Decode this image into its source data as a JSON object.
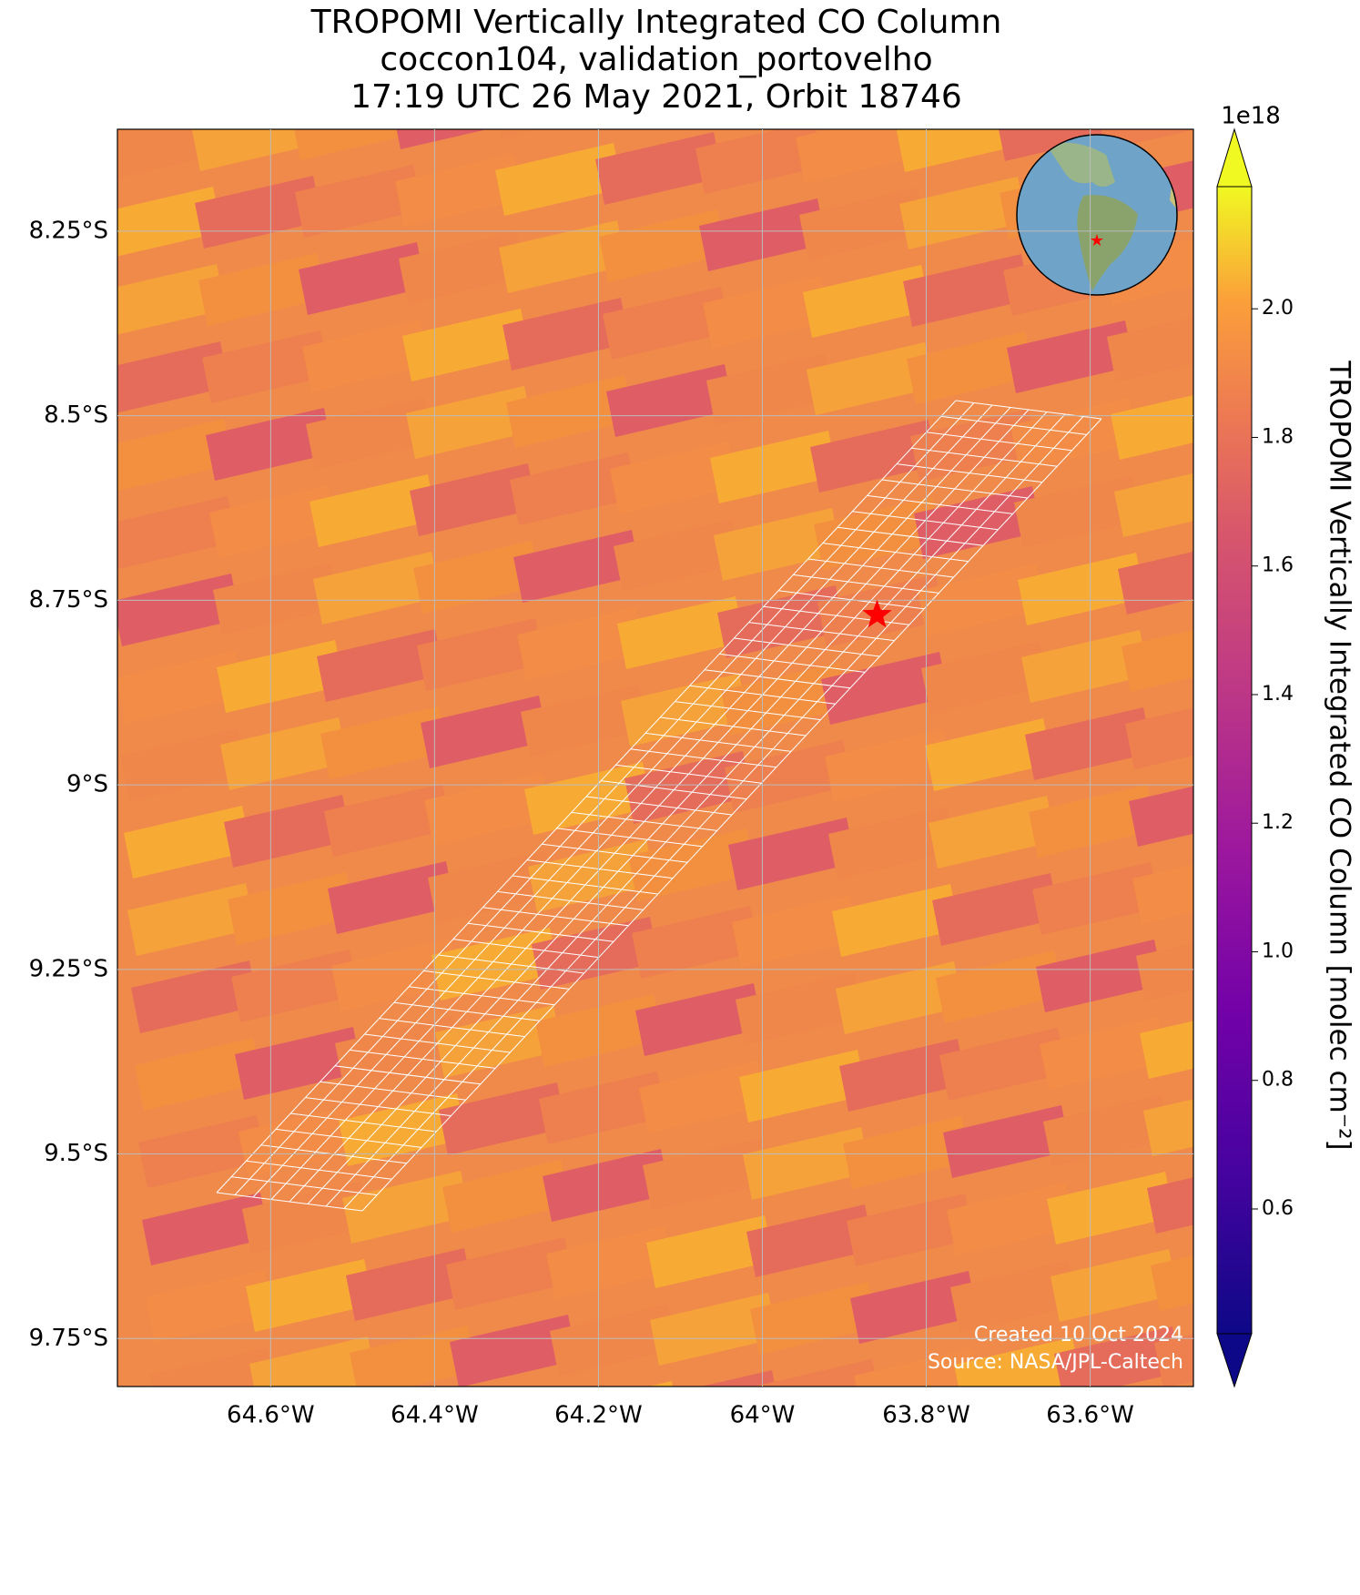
{
  "chart_data": {
    "type": "map",
    "title": [
      "TROPOMI Vertically Integrated CO Column",
      "coccon104, validation_portovelho",
      "17:19 UTC 26 May 2021, Orbit 18746"
    ],
    "xlim": [
      -64.787,
      -63.474
    ],
    "ylim": [
      -9.815,
      -8.112
    ],
    "xticks": [
      {
        "value": -64.6,
        "label": "64.6°W"
      },
      {
        "value": -64.4,
        "label": "64.4°W"
      },
      {
        "value": -64.2,
        "label": "64.2°W"
      },
      {
        "value": -64.0,
        "label": "64°W"
      },
      {
        "value": -63.8,
        "label": "63.8°W"
      },
      {
        "value": -63.6,
        "label": "63.6°W"
      }
    ],
    "yticks": [
      {
        "value": -8.25,
        "label": "8.25°S"
      },
      {
        "value": -8.5,
        "label": "8.5°S"
      },
      {
        "value": -8.75,
        "label": "8.75°S"
      },
      {
        "value": -9.0,
        "label": "9°S"
      },
      {
        "value": -9.25,
        "label": "9.25°S"
      },
      {
        "value": -9.5,
        "label": "9.5°S"
      },
      {
        "value": -9.75,
        "label": "9.75°S"
      }
    ],
    "grid": true,
    "site": {
      "lon": -63.86,
      "lat": -8.77,
      "color": "#ff0000"
    },
    "colorbar": {
      "label": "TROPOMI Vertically Integrated CO Column [molec cm⁻²]",
      "offset_text": "1e18",
      "colormap": "plasma",
      "lim": [
        0.406,
        2.19
      ],
      "ticks": [
        0.6,
        0.8,
        {
          "value": 1,
          "label": "1.0"
        },
        1.2,
        1.4,
        1.6,
        1.8,
        {
          "value": 2,
          "label": "2.0"
        }
      ]
    },
    "annotations": [
      "Created 10 Oct 2024",
      "Source: NASA/JPL-Caltech"
    ]
  }
}
